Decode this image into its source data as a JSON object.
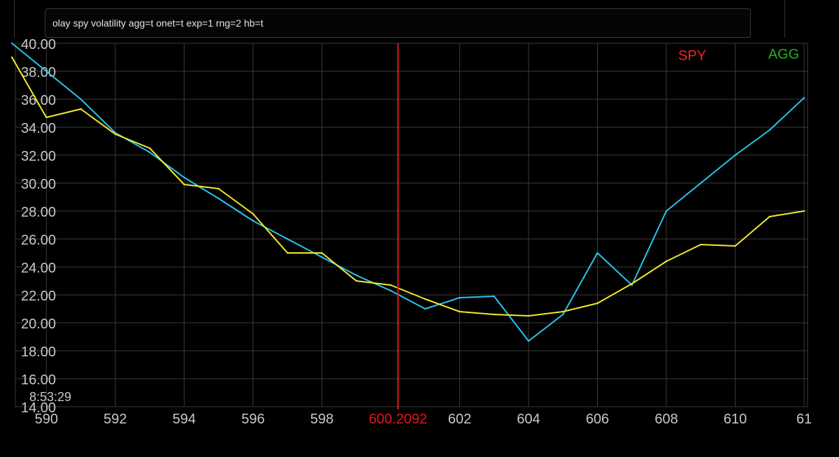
{
  "command_bar": {
    "text": "olay spy volatility agg=t onet=t exp=1 rng=2 hb=t"
  },
  "timestamp": "8:53:29",
  "colors": {
    "spy": "#ff2020",
    "agg": "#22b022",
    "series_cyan": "#29c4ee",
    "series_yellow": "#f2ea2a",
    "grid": "#3a3a3a",
    "tick_text": "#c8c8c8",
    "marker": "#e01818"
  },
  "chart_data": {
    "type": "line",
    "legend": [
      {
        "label": "SPY",
        "color": "#ff2020"
      },
      {
        "label": "AGG",
        "color": "#22b022"
      }
    ],
    "legend_position": "top-right",
    "xlim": [
      589.1,
      612.1
    ],
    "ylim": [
      14,
      40
    ],
    "grid": true,
    "y_ticks": [
      "14.00",
      "16.00",
      "18.00",
      "20.00",
      "22.00",
      "24.00",
      "26.00",
      "28.00",
      "30.00",
      "32.00",
      "34.00",
      "36.00",
      "38.00",
      "40.00"
    ],
    "x_ticks": [
      "590",
      "592",
      "594",
      "596",
      "598",
      "602",
      "604",
      "606",
      "608",
      "610",
      "61"
    ],
    "marker": {
      "x": 600.2092,
      "label": "600.2092"
    },
    "series": [
      {
        "color": "#29c4ee",
        "x": [
          589,
          590,
          591,
          592,
          593,
          594,
          595,
          596,
          597,
          598,
          599,
          600,
          601,
          602,
          603,
          604,
          605,
          606,
          607,
          608,
          609,
          610,
          611,
          612
        ],
        "y": [
          40.0,
          38.0,
          36.0,
          33.6,
          32.2,
          30.4,
          28.9,
          27.3,
          26.0,
          24.7,
          23.4,
          22.3,
          21.0,
          21.8,
          21.9,
          18.7,
          20.6,
          25.0,
          22.7,
          28.0,
          30.0,
          32.0,
          33.8,
          36.1
        ]
      },
      {
        "color": "#f2ea2a",
        "x": [
          589,
          590,
          591,
          592,
          593,
          594,
          595,
          596,
          597,
          598,
          599,
          600,
          601,
          602,
          603,
          604,
          605,
          606,
          607,
          608,
          609,
          610,
          611,
          612
        ],
        "y": [
          39.0,
          34.7,
          35.3,
          33.5,
          32.5,
          29.9,
          29.6,
          27.8,
          25.0,
          25.0,
          23.0,
          22.7,
          21.7,
          20.8,
          20.6,
          20.5,
          20.8,
          21.4,
          22.8,
          24.4,
          25.6,
          25.5,
          27.6,
          28.0
        ]
      }
    ]
  }
}
